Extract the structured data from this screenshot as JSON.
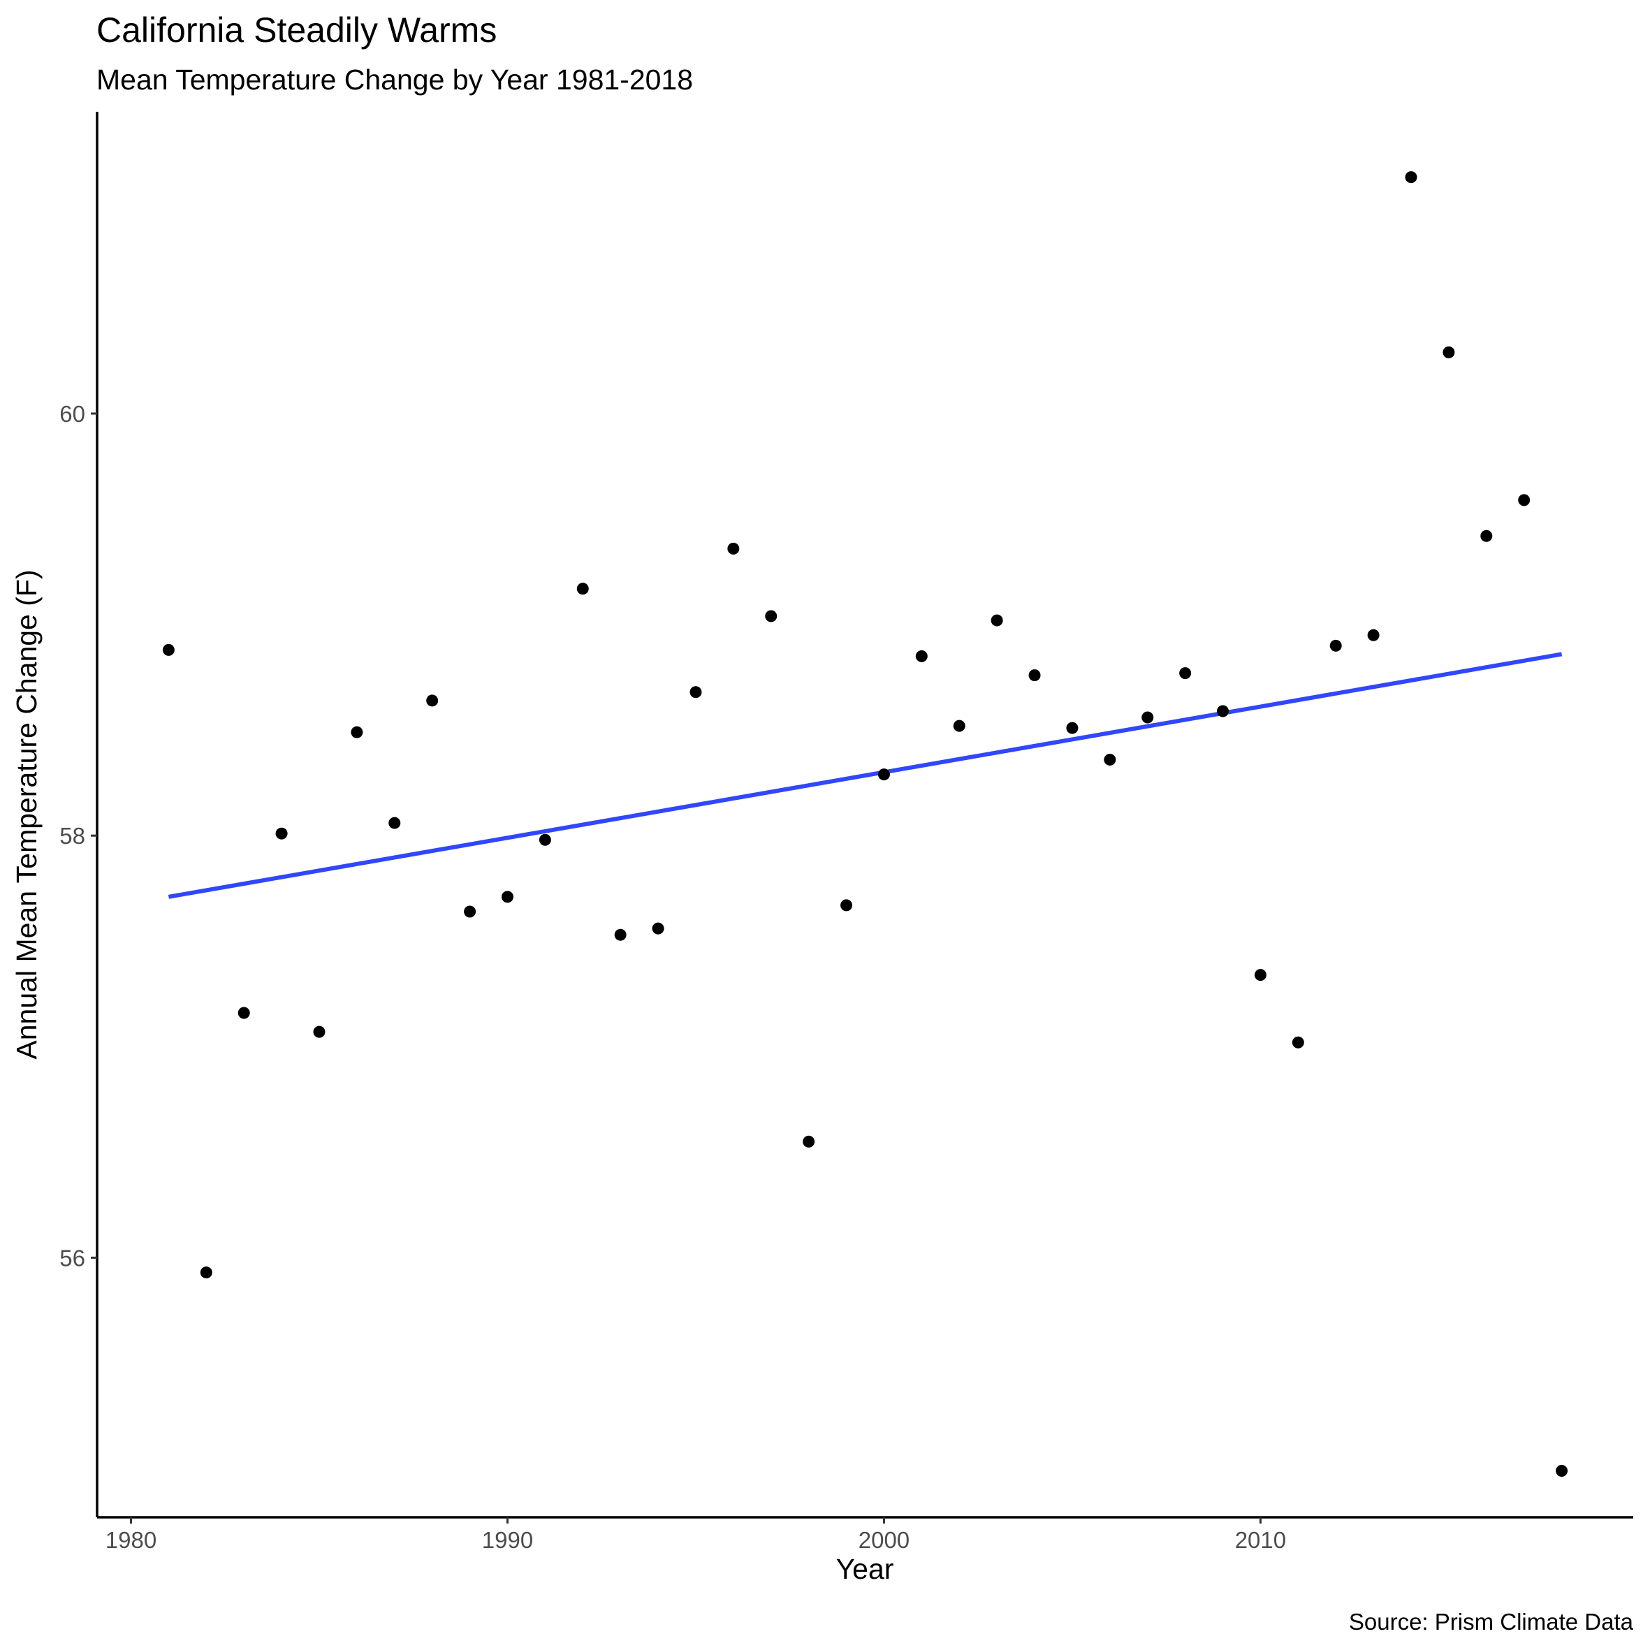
{
  "chart_data": {
    "type": "scatter",
    "title": "California Steadily Warms",
    "subtitle": "Mean Temperature Change by Year 1981-2018",
    "xlabel": "Year",
    "ylabel": "Annual Mean Temperature Change (F)",
    "caption": "Source: Prism Climate Data",
    "xlim": [
      1979.1,
      2019.9
    ],
    "ylim": [
      54.77,
      61.43
    ],
    "xticks": [
      1980,
      1990,
      2000,
      2010
    ],
    "yticks": [
      56,
      58,
      60
    ],
    "grid": false,
    "legend": "none",
    "point_color": "#000000",
    "trend_color": "#3047ff",
    "series": [
      {
        "x": [
          1981,
          1982,
          1983,
          1984,
          1985,
          1986,
          1987,
          1988,
          1989,
          1990,
          1991,
          1992,
          1993,
          1994,
          1995,
          1996,
          1997,
          1998,
          1999,
          2000,
          2001,
          2002,
          2003,
          2004,
          2005,
          2006,
          2007,
          2008,
          2009,
          2010,
          2011,
          2012,
          2013,
          2014,
          2015,
          2016,
          2017,
          2018
        ],
        "y": [
          58.88,
          55.93,
          57.16,
          58.01,
          57.07,
          58.49,
          58.06,
          58.64,
          57.64,
          57.71,
          57.98,
          59.17,
          57.53,
          57.56,
          58.68,
          59.36,
          59.04,
          56.55,
          57.67,
          58.29,
          58.85,
          58.52,
          59.02,
          58.76,
          58.51,
          58.36,
          58.56,
          58.77,
          58.59,
          57.34,
          57.02,
          58.9,
          58.95,
          61.12,
          60.29,
          59.42,
          59.59,
          54.99
        ]
      }
    ],
    "trend_line": {
      "type": "linear",
      "x": [
        1981,
        2018
      ],
      "y": [
        57.71,
        58.86
      ]
    }
  }
}
